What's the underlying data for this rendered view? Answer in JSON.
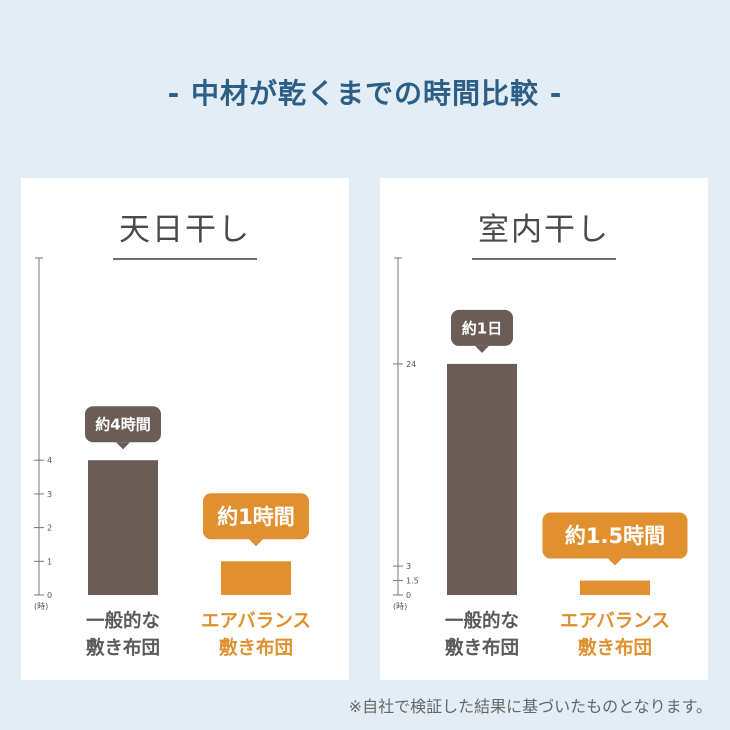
{
  "title": "- 中材が乾くまでの時間比較 -",
  "footnote": "※自社で検証した結果に基づいたものとなります。",
  "colors": {
    "background": "#e3edf5",
    "title": "#2c5e86",
    "conventional": "#6b5c56",
    "airbalance": "#e0902e",
    "axis": "#777777"
  },
  "chart_data": [
    {
      "type": "bar",
      "title": "天日干し",
      "unit": "(時)",
      "categories": [
        "一般的な\n敷き布団",
        "エアバランス\n敷き布団"
      ],
      "values": [
        4,
        1
      ],
      "value_labels": [
        "約4時間",
        "約1時間"
      ],
      "ylim": [
        0,
        10
      ],
      "ticks": [
        0,
        1,
        2,
        3,
        4
      ],
      "tick_labels": [
        "0",
        "1",
        "2",
        "3",
        "4"
      ]
    },
    {
      "type": "bar",
      "title": "室内干し",
      "unit": "(時)",
      "categories": [
        "一般的な\n敷き布団",
        "エアバランス\n敷き布団"
      ],
      "values": [
        24,
        1.5
      ],
      "value_labels": [
        "約1日",
        "約1.5時間"
      ],
      "ylim": [
        0,
        35
      ],
      "ticks": [
        0,
        1.5,
        3,
        24
      ],
      "tick_labels": [
        "0",
        "1.5",
        "3",
        "24"
      ]
    }
  ]
}
